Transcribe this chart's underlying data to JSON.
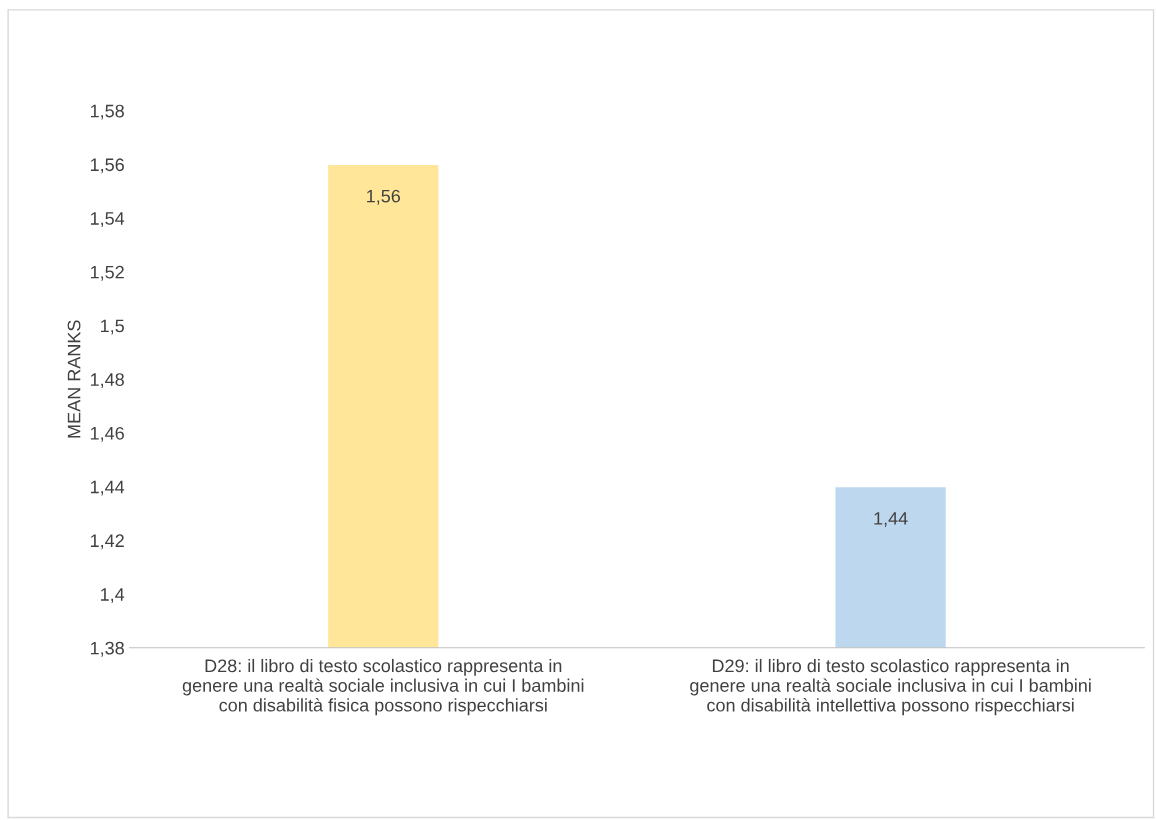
{
  "chart_data": {
    "type": "bar",
    "ylabel": "MEAN RANKS",
    "categories": [
      "D28: il libro di testo scolastico rappresenta in\ngenere una realtà sociale inclusiva in cui I bambini\ncon disabilità fisica possono rispecchiarsi",
      "D29: il libro di testo scolastico rappresenta in\ngenere una realtà sociale inclusiva in cui I bambini\ncon disabilità intellettiva possono rispecchiarsi"
    ],
    "values": [
      1.56,
      1.44
    ],
    "colors": [
      "#ffe699",
      "#bdd7ee"
    ],
    "value_labels": [
      "1,56",
      "1,44"
    ],
    "ylim": [
      1.38,
      1.58
    ],
    "yticks": [
      {
        "value": 1.38,
        "label": "1,38"
      },
      {
        "value": 1.4,
        "label": "1,4"
      },
      {
        "value": 1.42,
        "label": "1,42"
      },
      {
        "value": 1.44,
        "label": "1,44"
      },
      {
        "value": 1.46,
        "label": "1,46"
      },
      {
        "value": 1.48,
        "label": "1,48"
      },
      {
        "value": 1.5,
        "label": "1,5"
      },
      {
        "value": 1.52,
        "label": "1,52"
      },
      {
        "value": 1.54,
        "label": "1,54"
      },
      {
        "value": 1.56,
        "label": "1,56"
      },
      {
        "value": 1.58,
        "label": "1,58"
      }
    ],
    "grid": false,
    "legend": false
  }
}
